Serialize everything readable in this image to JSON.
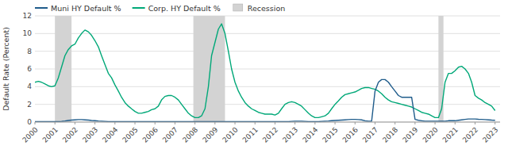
{
  "chart_data": {
    "type": "line",
    "ylabel": "Default Rate (Percent)",
    "xlim": [
      2000,
      2023.25
    ],
    "xticks": [
      2000,
      2001,
      2002,
      2003,
      2004,
      2005,
      2006,
      2007,
      2008,
      2009,
      2010,
      2011,
      2012,
      2013,
      2014,
      2015,
      2016,
      2017,
      2018,
      2019,
      2020,
      2021,
      2022,
      2023
    ],
    "ylim": [
      0,
      12
    ],
    "yticks": [
      0,
      2,
      4,
      6,
      8,
      10,
      12
    ],
    "grid": "y",
    "legend": "upper left",
    "shaded_periods": {
      "name": "Recession",
      "color": "#d3d3d3",
      "ranges": [
        [
          2001.0,
          2001.83
        ],
        [
          2007.92,
          2009.5
        ],
        [
          2020.17,
          2020.42
        ]
      ]
    },
    "x": [
      2000.0,
      2000.17,
      2000.33,
      2000.5,
      2000.67,
      2000.83,
      2001.0,
      2001.17,
      2001.33,
      2001.5,
      2001.67,
      2001.83,
      2002.0,
      2002.17,
      2002.33,
      2002.5,
      2002.67,
      2002.83,
      2003.0,
      2003.17,
      2003.33,
      2003.5,
      2003.67,
      2003.83,
      2004.0,
      2004.17,
      2004.33,
      2004.5,
      2004.67,
      2004.83,
      2005.0,
      2005.17,
      2005.33,
      2005.5,
      2005.67,
      2005.83,
      2006.0,
      2006.17,
      2006.33,
      2006.5,
      2006.67,
      2006.83,
      2007.0,
      2007.17,
      2007.33,
      2007.5,
      2007.67,
      2007.83,
      2008.0,
      2008.17,
      2008.33,
      2008.5,
      2008.67,
      2008.83,
      2009.0,
      2009.17,
      2009.33,
      2009.5,
      2009.67,
      2009.83,
      2010.0,
      2010.17,
      2010.33,
      2010.5,
      2010.67,
      2010.83,
      2011.0,
      2011.17,
      2011.33,
      2011.5,
      2011.67,
      2011.83,
      2012.0,
      2012.17,
      2012.33,
      2012.5,
      2012.67,
      2012.83,
      2013.0,
      2013.17,
      2013.33,
      2013.5,
      2013.67,
      2013.83,
      2014.0,
      2014.17,
      2014.33,
      2014.5,
      2014.67,
      2014.83,
      2015.0,
      2015.17,
      2015.33,
      2015.5,
      2015.67,
      2015.83,
      2016.0,
      2016.17,
      2016.33,
      2016.5,
      2016.67,
      2016.83,
      2017.0,
      2017.17,
      2017.33,
      2017.5,
      2017.67,
      2017.83,
      2018.0,
      2018.17,
      2018.33,
      2018.5,
      2018.67,
      2018.83,
      2019.0,
      2019.17,
      2019.33,
      2019.5,
      2019.67,
      2019.83,
      2020.0,
      2020.17,
      2020.33,
      2020.5,
      2020.67,
      2020.83,
      2021.0,
      2021.17,
      2021.33,
      2021.5,
      2021.67,
      2021.83,
      2022.0,
      2022.17,
      2022.33,
      2022.5,
      2022.67,
      2022.83,
      2023.0
    ],
    "series": [
      {
        "name": "Muni HY Default %",
        "color": "#1f5c8b",
        "values": [
          0.05,
          0.05,
          0.05,
          0.05,
          0.05,
          0.05,
          0.05,
          0.05,
          0.08,
          0.12,
          0.18,
          0.22,
          0.25,
          0.28,
          0.28,
          0.25,
          0.22,
          0.18,
          0.15,
          0.12,
          0.1,
          0.08,
          0.06,
          0.05,
          0.05,
          0.05,
          0.05,
          0.05,
          0.05,
          0.05,
          0.05,
          0.05,
          0.05,
          0.05,
          0.05,
          0.05,
          0.05,
          0.05,
          0.05,
          0.05,
          0.05,
          0.05,
          0.05,
          0.05,
          0.05,
          0.05,
          0.05,
          0.05,
          0.05,
          0.05,
          0.05,
          0.05,
          0.05,
          0.05,
          0.05,
          0.05,
          0.05,
          0.05,
          0.05,
          0.05,
          0.05,
          0.05,
          0.05,
          0.05,
          0.05,
          0.05,
          0.05,
          0.05,
          0.05,
          0.05,
          0.05,
          0.05,
          0.05,
          0.05,
          0.05,
          0.05,
          0.05,
          0.08,
          0.1,
          0.1,
          0.1,
          0.08,
          0.06,
          0.05,
          0.05,
          0.05,
          0.08,
          0.1,
          0.12,
          0.15,
          0.18,
          0.2,
          0.22,
          0.25,
          0.28,
          0.3,
          0.3,
          0.28,
          0.25,
          0.15,
          0.1,
          0.1,
          3.5,
          4.5,
          4.8,
          4.8,
          4.5,
          4.0,
          3.5,
          3.0,
          2.8,
          2.8,
          2.8,
          2.8,
          0.3,
          0.2,
          0.15,
          0.1,
          0.1,
          0.1,
          0.1,
          0.1,
          0.1,
          0.1,
          0.15,
          0.15,
          0.15,
          0.2,
          0.25,
          0.3,
          0.35,
          0.35,
          0.35,
          0.32,
          0.3,
          0.28,
          0.25,
          0.22,
          0.2
        ]
      },
      {
        "name": "Corp. HY Default %",
        "color": "#00a878",
        "values": [
          4.5,
          4.6,
          4.5,
          4.3,
          4.1,
          4.0,
          4.1,
          5.0,
          6.2,
          7.5,
          8.2,
          8.6,
          8.8,
          9.5,
          10.0,
          10.4,
          10.2,
          9.8,
          9.2,
          8.5,
          7.5,
          6.5,
          5.5,
          5.0,
          4.2,
          3.5,
          2.8,
          2.2,
          1.8,
          1.5,
          1.2,
          1.0,
          1.0,
          1.1,
          1.2,
          1.4,
          1.5,
          1.8,
          2.5,
          2.9,
          3.0,
          3.0,
          2.8,
          2.5,
          2.0,
          1.5,
          1.0,
          0.7,
          0.5,
          0.5,
          0.7,
          1.5,
          4.0,
          7.5,
          9.0,
          10.5,
          11.1,
          10.0,
          8.0,
          6.0,
          4.5,
          3.5,
          2.8,
          2.2,
          1.8,
          1.5,
          1.3,
          1.1,
          1.0,
          0.9,
          0.9,
          0.9,
          0.8,
          1.0,
          1.5,
          2.0,
          2.2,
          2.3,
          2.2,
          2.0,
          1.8,
          1.4,
          1.0,
          0.7,
          0.5,
          0.5,
          0.6,
          0.7,
          1.0,
          1.5,
          2.0,
          2.4,
          2.8,
          3.1,
          3.2,
          3.3,
          3.4,
          3.6,
          3.8,
          3.9,
          3.9,
          3.8,
          3.7,
          3.5,
          3.2,
          2.8,
          2.5,
          2.3,
          2.2,
          2.1,
          2.0,
          1.9,
          1.8,
          1.7,
          1.5,
          1.3,
          1.1,
          1.0,
          0.9,
          0.7,
          0.5,
          0.5,
          1.5,
          4.5,
          5.5,
          5.5,
          5.8,
          6.2,
          6.3,
          6.0,
          5.5,
          4.5,
          3.0,
          2.7,
          2.5,
          2.2,
          2.0,
          1.8,
          1.3
        ]
      }
    ]
  }
}
